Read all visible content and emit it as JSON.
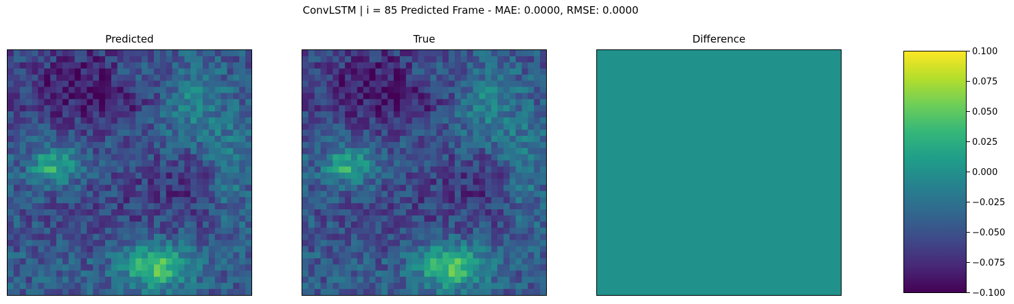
{
  "chart_data": {
    "type": "heatmap",
    "title": "ConvLSTM | i = 85 Predicted Frame - MAE: 0.0000, RMSE: 0.0000",
    "colormap": "viridis",
    "colors": {
      "viridis_stops": [
        "#440154",
        "#482878",
        "#3e4a89",
        "#31688e",
        "#26828e",
        "#1f9e89",
        "#35b779",
        "#6ece58",
        "#b5de2b",
        "#fde725"
      ]
    },
    "panels": [
      {
        "title": "Predicted",
        "grid_size": 40,
        "description_key": "field"
      },
      {
        "title": "True",
        "grid_size": 40,
        "description_key": "field"
      },
      {
        "title": "Difference",
        "grid_size": 40,
        "uniform_value": 0.0
      }
    ],
    "colorbar": {
      "min": -0.1,
      "max": 0.1,
      "ticks": [
        {
          "value": 0.1,
          "label": "0.100"
        },
        {
          "value": 0.075,
          "label": "0.075"
        },
        {
          "value": 0.05,
          "label": "0.050"
        },
        {
          "value": 0.025,
          "label": "0.025"
        },
        {
          "value": 0.0,
          "label": "0.000"
        },
        {
          "value": -0.025,
          "label": "−0.025"
        },
        {
          "value": -0.05,
          "label": "−0.050"
        },
        {
          "value": -0.075,
          "label": "−0.075"
        },
        {
          "value": -0.1,
          "label": "−0.100"
        }
      ]
    },
    "difference_color": "#21918c"
  }
}
